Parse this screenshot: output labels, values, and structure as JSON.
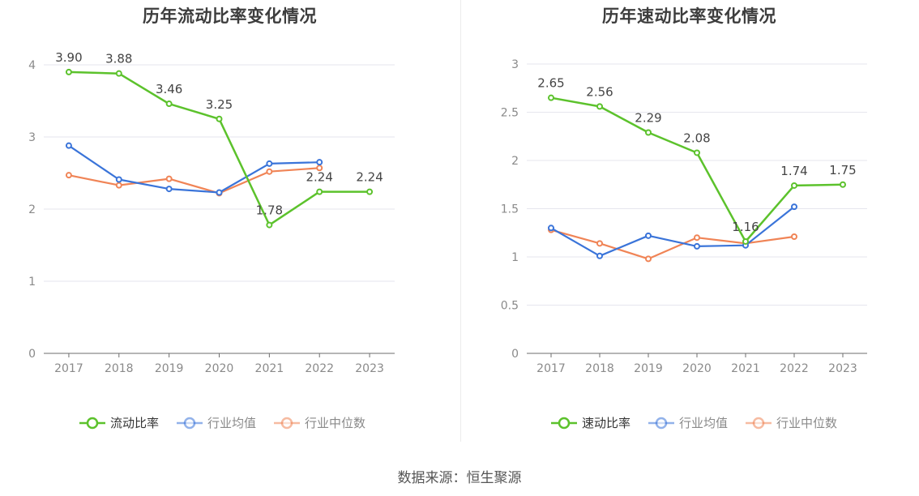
{
  "source": "数据来源：恒生聚源",
  "chart_data": [
    {
      "type": "line",
      "title": "历年流动比率变化情况",
      "categories": [
        "2017",
        "2018",
        "2019",
        "2020",
        "2021",
        "2022",
        "2023"
      ],
      "ylim": [
        0,
        4
      ],
      "yticks": [
        "0",
        "1",
        "2",
        "3",
        "4"
      ],
      "grid": true,
      "legend_position": "bottom-center",
      "series": [
        {
          "name": "流动比率",
          "color": "#5cc22c",
          "values": [
            3.9,
            3.88,
            3.46,
            3.25,
            1.78,
            2.24,
            2.24
          ],
          "labels": [
            "3.90",
            "3.88",
            "3.46",
            "3.25",
            "1.78",
            "2.24",
            "2.24"
          ]
        },
        {
          "name": "行业均值",
          "color": "#3a74d9",
          "values": [
            2.88,
            2.41,
            2.28,
            2.23,
            2.63,
            2.65,
            null
          ]
        },
        {
          "name": "行业中位数",
          "color": "#f08456",
          "values": [
            2.47,
            2.33,
            2.42,
            2.22,
            2.52,
            2.57,
            null
          ]
        }
      ]
    },
    {
      "type": "line",
      "title": "历年速动比率变化情况",
      "categories": [
        "2017",
        "2018",
        "2019",
        "2020",
        "2021",
        "2022",
        "2023"
      ],
      "ylim": [
        0,
        3
      ],
      "yticks": [
        "0",
        "0.5",
        "1",
        "1.5",
        "2",
        "2.5",
        "3"
      ],
      "grid": true,
      "legend_position": "bottom-center",
      "series": [
        {
          "name": "速动比率",
          "color": "#5cc22c",
          "values": [
            2.65,
            2.56,
            2.29,
            2.08,
            1.16,
            1.74,
            1.75
          ],
          "labels": [
            "2.65",
            "2.56",
            "2.29",
            "2.08",
            "1.16",
            "1.74",
            "1.75"
          ]
        },
        {
          "name": "行业均值",
          "color": "#3a74d9",
          "values": [
            1.3,
            1.01,
            1.22,
            1.11,
            1.12,
            1.52,
            null
          ]
        },
        {
          "name": "行业中位数",
          "color": "#f08456",
          "values": [
            1.28,
            1.14,
            0.98,
            1.2,
            1.14,
            1.21,
            null
          ]
        }
      ]
    }
  ]
}
